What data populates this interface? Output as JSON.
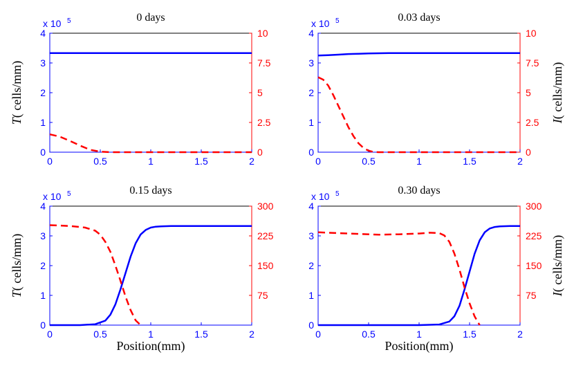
{
  "chart_data": [
    {
      "type": "line",
      "title": "0 days",
      "xlabel": "",
      "ylabel_left_var": "T",
      "ylabel_left_text": "( cells/mm)",
      "ylabel_right_var": "",
      "ylabel_right_text": "",
      "y_multiplier_base": "x 10",
      "y_multiplier_exp": "5",
      "xlim": [
        0,
        2
      ],
      "ylim_left": [
        0,
        4
      ],
      "ylim_right": [
        0,
        10
      ],
      "x_ticks": [
        "0",
        "0.5",
        "1",
        "1.5",
        "2"
      ],
      "y_left_ticks": [
        "0",
        "1",
        "2",
        "3",
        "4"
      ],
      "y_right_ticks": [
        "0",
        "2.5",
        "5",
        "7.5",
        "10"
      ],
      "series": [
        {
          "name": "T",
          "axis": "left",
          "color": "#0000ff",
          "style": "solid",
          "x": [
            0,
            0.5,
            1,
            1.5,
            2
          ],
          "y": [
            3.33,
            3.33,
            3.33,
            3.33,
            3.33
          ]
        },
        {
          "name": "I",
          "axis": "right",
          "color": "#ff0000",
          "style": "dashed",
          "x": [
            0,
            0.1,
            0.2,
            0.3,
            0.4,
            0.5,
            0.6,
            0.8,
            1.0,
            1.5,
            2.0
          ],
          "y": [
            1.5,
            1.3,
            0.95,
            0.55,
            0.2,
            0.04,
            0.0,
            0.0,
            0.0,
            0.0,
            0.0
          ]
        }
      ]
    },
    {
      "type": "line",
      "title": "0.03 days",
      "xlabel": "",
      "ylabel_left_var": "",
      "ylabel_left_text": "",
      "ylabel_right_var": "I",
      "ylabel_right_text": "( cells/mm)",
      "y_multiplier_base": "x 10",
      "y_multiplier_exp": "5",
      "xlim": [
        0,
        2
      ],
      "ylim_left": [
        0,
        4
      ],
      "ylim_right": [
        0,
        10
      ],
      "x_ticks": [
        "0",
        "0.5",
        "1",
        "1.5",
        "2"
      ],
      "y_left_ticks": [
        "0",
        "1",
        "2",
        "3",
        "4"
      ],
      "y_right_ticks": [
        "0",
        "2.5",
        "5",
        "7.5",
        "10"
      ],
      "series": [
        {
          "name": "T",
          "axis": "left",
          "color": "#0000ff",
          "style": "solid",
          "x": [
            0,
            0.1,
            0.2,
            0.3,
            0.4,
            0.5,
            0.7,
            1.0,
            1.5,
            2.0
          ],
          "y": [
            3.25,
            3.26,
            3.28,
            3.3,
            3.31,
            3.32,
            3.33,
            3.33,
            3.33,
            3.33
          ]
        },
        {
          "name": "I",
          "axis": "right",
          "color": "#ff0000",
          "style": "dashed",
          "x": [
            0,
            0.05,
            0.1,
            0.15,
            0.2,
            0.25,
            0.3,
            0.35,
            0.4,
            0.45,
            0.5,
            0.55,
            0.6,
            0.8,
            1.0,
            1.5,
            2.0
          ],
          "y": [
            6.3,
            6.1,
            5.6,
            4.8,
            3.9,
            3.0,
            2.1,
            1.35,
            0.75,
            0.35,
            0.12,
            0.02,
            0.0,
            0.0,
            0.0,
            0.0,
            0.0
          ]
        }
      ]
    },
    {
      "type": "line",
      "title": "0.15 days",
      "xlabel": "Position(mm)",
      "ylabel_left_var": "T",
      "ylabel_left_text": "( cells/mm)",
      "ylabel_right_var": "",
      "ylabel_right_text": "",
      "y_multiplier_base": "x 10",
      "y_multiplier_exp": "5",
      "xlim": [
        0,
        2
      ],
      "ylim_left": [
        0,
        4
      ],
      "ylim_right": [
        0,
        300
      ],
      "x_ticks": [
        "0",
        "0.5",
        "1",
        "1.5",
        "2"
      ],
      "y_left_ticks": [
        "0",
        "1",
        "2",
        "3",
        "4"
      ],
      "y_right_ticks": [
        "75",
        "150",
        "225",
        "300"
      ],
      "y_right_tick_values": [
        75,
        150,
        225,
        300
      ],
      "series": [
        {
          "name": "T",
          "axis": "left",
          "color": "#0000ff",
          "style": "solid",
          "x": [
            0,
            0.3,
            0.45,
            0.55,
            0.6,
            0.65,
            0.7,
            0.75,
            0.8,
            0.85,
            0.9,
            0.95,
            1.0,
            1.05,
            1.1,
            1.2,
            1.5,
            2.0
          ],
          "y": [
            0,
            0.0,
            0.03,
            0.15,
            0.35,
            0.7,
            1.2,
            1.75,
            2.3,
            2.75,
            3.05,
            3.2,
            3.28,
            3.31,
            3.32,
            3.33,
            3.33,
            3.33
          ]
        },
        {
          "name": "I",
          "axis": "right",
          "color": "#ff0000",
          "style": "dashed",
          "x": [
            0,
            0.2,
            0.35,
            0.45,
            0.5,
            0.55,
            0.6,
            0.65,
            0.7,
            0.75,
            0.8,
            0.85,
            0.9
          ],
          "y": [
            252,
            250,
            246,
            238,
            228,
            210,
            185,
            150,
            112,
            72,
            38,
            12,
            0
          ]
        }
      ]
    },
    {
      "type": "line",
      "title": "0.30 days",
      "xlabel": "Position(mm)",
      "ylabel_left_var": "",
      "ylabel_left_text": "",
      "ylabel_right_var": "I",
      "ylabel_right_text": "( cells/mm)",
      "y_multiplier_base": "x 10",
      "y_multiplier_exp": "5",
      "xlim": [
        0,
        2
      ],
      "ylim_left": [
        0,
        4
      ],
      "ylim_right": [
        0,
        300
      ],
      "x_ticks": [
        "0",
        "0.5",
        "1",
        "1.5",
        "2"
      ],
      "y_left_ticks": [
        "0",
        "1",
        "2",
        "3",
        "4"
      ],
      "y_right_ticks": [
        "75",
        "150",
        "225",
        "300"
      ],
      "y_right_tick_values": [
        75,
        150,
        225,
        300
      ],
      "series": [
        {
          "name": "T",
          "axis": "left",
          "color": "#0000ff",
          "style": "solid",
          "x": [
            0,
            1.0,
            1.2,
            1.3,
            1.35,
            1.4,
            1.45,
            1.5,
            1.55,
            1.6,
            1.65,
            1.7,
            1.75,
            1.8,
            1.9,
            2.0
          ],
          "y": [
            0,
            0.0,
            0.02,
            0.12,
            0.3,
            0.65,
            1.2,
            1.8,
            2.4,
            2.85,
            3.12,
            3.25,
            3.3,
            3.32,
            3.33,
            3.33
          ]
        },
        {
          "name": "I",
          "axis": "right",
          "color": "#ff0000",
          "style": "dashed",
          "x": [
            0,
            0.2,
            0.4,
            0.6,
            0.8,
            1.0,
            1.1,
            1.2,
            1.25,
            1.3,
            1.35,
            1.4,
            1.45,
            1.5,
            1.55,
            1.6
          ],
          "y": [
            234,
            232,
            230,
            228,
            229,
            231,
            233,
            232,
            226,
            210,
            180,
            140,
            95,
            55,
            22,
            0
          ]
        }
      ]
    }
  ]
}
